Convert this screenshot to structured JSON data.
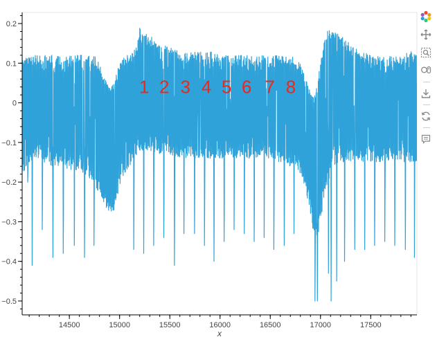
{
  "chart_data": {
    "type": "line",
    "xlabel": "x",
    "ylabel": "",
    "title": "",
    "xlim": [
      14030,
      17960
    ],
    "ylim": [
      -0.535,
      0.228
    ],
    "x_ticks": [
      14500,
      15000,
      15500,
      16000,
      16500,
      17000,
      17500
    ],
    "y_ticks": [
      0.2,
      0.1,
      0,
      -0.1,
      -0.2,
      -0.3,
      -0.4,
      -0.5
    ],
    "x_tick_labels": [
      "14500",
      "15000",
      "15500",
      "16000",
      "16500",
      "17000",
      "17500"
    ],
    "y_tick_labels": [
      "0.2",
      "0.1",
      "0",
      "−0.1",
      "−0.2",
      "−0.3",
      "−0.4",
      "−0.5"
    ],
    "grid": false,
    "line_color": "#30a2da",
    "annotation_color": "#e8291c",
    "annotations": [
      {
        "text": "1",
        "x": 15245,
        "y": 0.04
      },
      {
        "text": "2",
        "x": 15445,
        "y": 0.04
      },
      {
        "text": "3",
        "x": 15655,
        "y": 0.04
      },
      {
        "text": "4",
        "x": 15865,
        "y": 0.04
      },
      {
        "text": "5",
        "x": 16065,
        "y": 0.04
      },
      {
        "text": "6",
        "x": 16265,
        "y": 0.04
      },
      {
        "text": "7",
        "x": 16495,
        "y": 0.04
      },
      {
        "text": "8",
        "x": 16705,
        "y": 0.04
      }
    ],
    "series": [
      {
        "x": [
          14030,
          14070,
          14100,
          14150,
          14200,
          14250,
          14300,
          14350,
          14400,
          14450,
          14500,
          14550,
          14600,
          14650,
          14700,
          14750,
          14800,
          14850,
          14900,
          14950,
          15000,
          15050,
          15100,
          15150,
          15200,
          15300,
          15400,
          15500,
          15600,
          15700,
          15800,
          15900,
          16000,
          16100,
          16200,
          16300,
          16400,
          16500,
          16600,
          16700,
          16800,
          16850,
          16900,
          16930,
          16960,
          17000,
          17050,
          17100,
          17130,
          17200,
          17300,
          17400,
          17500,
          17600,
          17700,
          17800,
          17900,
          17960
        ],
        "y_upper": [
          0.12,
          0.12,
          0.12,
          0.12,
          0.12,
          0.12,
          0.12,
          0.12,
          0.12,
          0.12,
          0.12,
          0.12,
          0.12,
          0.12,
          0.12,
          0.12,
          0.1,
          0.07,
          0.04,
          0.06,
          0.1,
          0.12,
          0.12,
          0.14,
          0.19,
          0.17,
          0.15,
          0.14,
          0.13,
          0.13,
          0.13,
          0.13,
          0.12,
          0.12,
          0.12,
          0.12,
          0.12,
          0.12,
          0.12,
          0.12,
          0.1,
          0.06,
          0.03,
          0.02,
          0.04,
          0.1,
          0.18,
          0.19,
          0.18,
          0.17,
          0.15,
          0.13,
          0.12,
          0.12,
          0.12,
          0.12,
          0.13,
          0.12
        ],
        "y_lower": [
          -0.18,
          -0.17,
          -0.15,
          -0.14,
          -0.14,
          -0.15,
          -0.16,
          -0.16,
          -0.16,
          -0.16,
          -0.17,
          -0.17,
          -0.17,
          -0.18,
          -0.19,
          -0.21,
          -0.23,
          -0.26,
          -0.28,
          -0.27,
          -0.22,
          -0.18,
          -0.16,
          -0.14,
          -0.12,
          -0.12,
          -0.13,
          -0.13,
          -0.14,
          -0.14,
          -0.14,
          -0.14,
          -0.14,
          -0.14,
          -0.14,
          -0.14,
          -0.14,
          -0.14,
          -0.15,
          -0.16,
          -0.18,
          -0.22,
          -0.28,
          -0.33,
          -0.36,
          -0.3,
          -0.22,
          -0.18,
          -0.16,
          -0.15,
          -0.15,
          -0.15,
          -0.15,
          -0.15,
          -0.15,
          -0.15,
          -0.15,
          -0.15
        ],
        "spikes_x": [
          14085,
          14130,
          14230,
          14335,
          14440,
          14550,
          14650,
          14745,
          15140,
          15240,
          15340,
          15440,
          15545,
          15640,
          15745,
          15845,
          15940,
          16040,
          16140,
          16240,
          16340,
          16440,
          16535,
          16640,
          16735,
          16945,
          16970,
          17080,
          17105,
          17160,
          17240,
          17340,
          17440,
          17540,
          17640,
          17740,
          17845,
          17935
        ],
        "spikes_y": [
          -0.2,
          -0.41,
          -0.32,
          -0.39,
          -0.38,
          -0.36,
          -0.39,
          -0.36,
          -0.37,
          -0.38,
          -0.36,
          -0.34,
          -0.41,
          -0.33,
          -0.33,
          -0.36,
          -0.4,
          -0.35,
          -0.32,
          -0.33,
          -0.35,
          -0.34,
          -0.37,
          -0.36,
          -0.33,
          -0.5,
          -0.5,
          -0.43,
          -0.5,
          -0.45,
          -0.4,
          -0.37,
          -0.37,
          -0.36,
          -0.35,
          -0.36,
          -0.37,
          -0.39
        ]
      }
    ]
  },
  "toolbar": {
    "tools": [
      "bokeh-logo-icon",
      "pan-icon",
      "box-zoom-icon",
      "wheel-zoom-icon",
      "save-icon",
      "reset-icon",
      "hover-icon"
    ]
  }
}
